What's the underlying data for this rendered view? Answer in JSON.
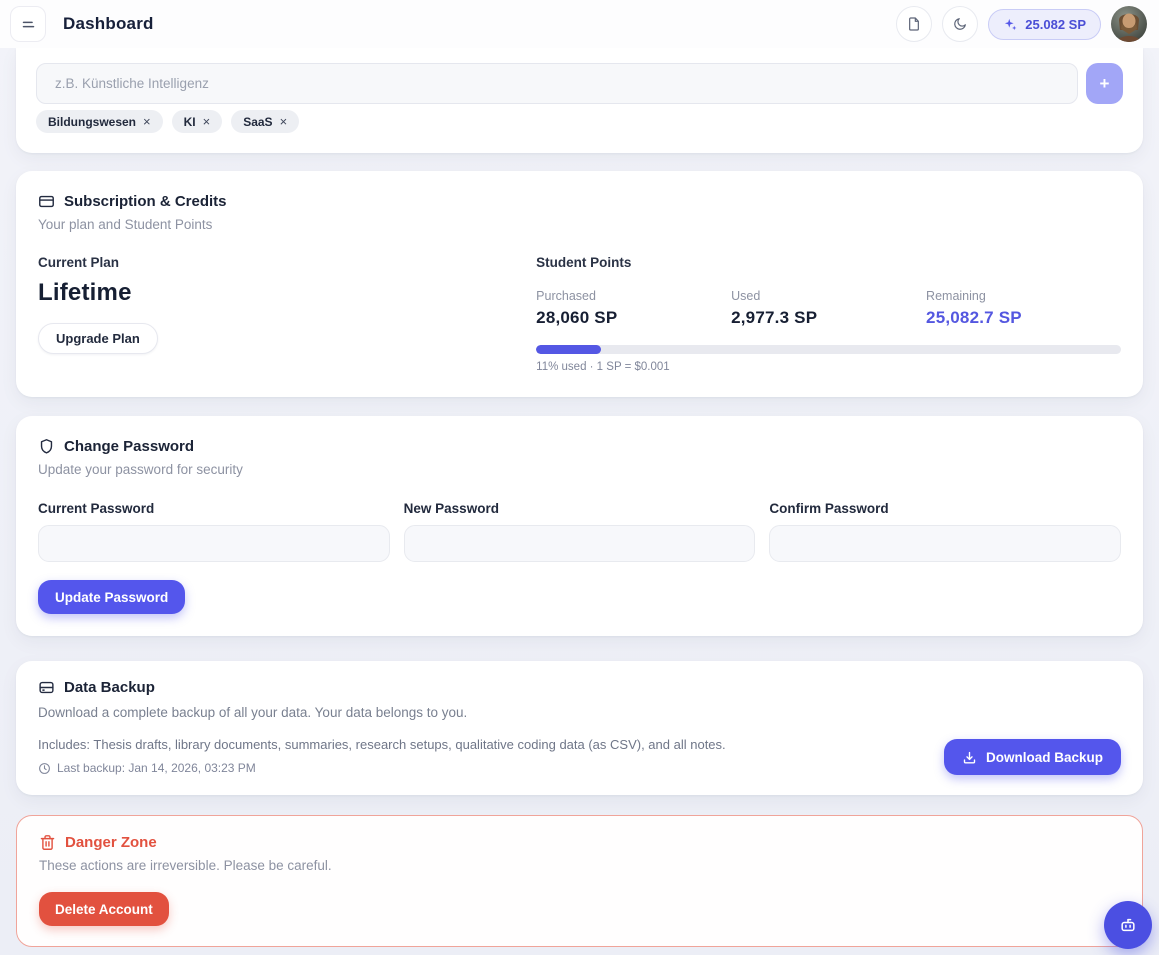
{
  "header": {
    "title": "Dashboard",
    "sp_badge": "25.082 SP"
  },
  "interests_card": {
    "input_placeholder": "z.B. Künstliche Intelligenz",
    "add_button_label": "+",
    "tag_remove_glyph": "×",
    "tags": [
      {
        "label": "Bildungswesen"
      },
      {
        "label": "KI"
      },
      {
        "label": "SaaS"
      }
    ]
  },
  "subscription_card": {
    "title": "Subscription & Credits",
    "subtitle": "Your plan and Student Points",
    "current_plan_label": "Current Plan",
    "plan_name": "Lifetime",
    "upgrade_button": "Upgrade Plan",
    "points_title": "Student Points",
    "stats": [
      {
        "label": "Purchased",
        "value": "28,060 SP"
      },
      {
        "label": "Used",
        "value": "2,977.3 SP"
      },
      {
        "label": "Remaining",
        "value": "25,082.7 SP"
      }
    ],
    "progress_percent": 11,
    "progress_caption": "11% used · 1 SP = $0.001"
  },
  "password_card": {
    "title": "Change Password",
    "subtitle": "Update your password for security",
    "fields": [
      {
        "label": "Current Password"
      },
      {
        "label": "New Password"
      },
      {
        "label": "Confirm Password"
      }
    ],
    "submit_button": "Update Password"
  },
  "backup_card": {
    "title": "Data Backup",
    "description": "Download a complete backup of all your data. Your data belongs to you.",
    "includes": "Includes: Thesis drafts, library documents, summaries, research setups, qualitative coding data (as CSV), and all notes.",
    "last_backup": "Last backup: Jan 14, 2026, 03:23 PM",
    "download_button": "Download Backup"
  },
  "danger_card": {
    "title": "Danger Zone",
    "subtitle": "These actions are irreversible. Please be careful.",
    "delete_button": "Delete Account"
  },
  "colors": {
    "accent": "#5457e8",
    "accent_light": "#a2a6f7",
    "danger": "#e2513f",
    "page_bg": "#eef0f7"
  }
}
